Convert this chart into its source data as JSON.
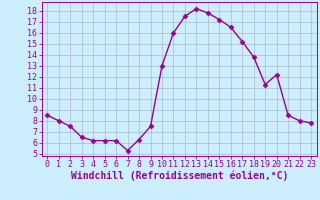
{
  "x": [
    0,
    1,
    2,
    3,
    4,
    5,
    6,
    7,
    8,
    9,
    10,
    11,
    12,
    13,
    14,
    15,
    16,
    17,
    18,
    19,
    20,
    21,
    22,
    23
  ],
  "y": [
    8.5,
    8.0,
    7.5,
    6.5,
    6.2,
    6.2,
    6.2,
    5.3,
    6.3,
    7.5,
    13.0,
    16.0,
    17.5,
    18.2,
    17.8,
    17.2,
    16.5,
    15.2,
    13.8,
    11.3,
    12.2,
    8.5,
    8.0,
    7.8
  ],
  "line_color": "#990099",
  "marker": "D",
  "marker_size": 2.5,
  "bg_color": "#cceeff",
  "grid_color": "#b0b8cc",
  "xlabel": "Windchill (Refroidissement éolien,°C)",
  "xlim": [
    -0.5,
    23.5
  ],
  "ylim": [
    4.8,
    18.8
  ],
  "yticks": [
    5,
    6,
    7,
    8,
    9,
    10,
    11,
    12,
    13,
    14,
    15,
    16,
    17,
    18
  ],
  "xticks": [
    0,
    1,
    2,
    3,
    4,
    5,
    6,
    7,
    8,
    9,
    10,
    11,
    12,
    13,
    14,
    15,
    16,
    17,
    18,
    19,
    20,
    21,
    22,
    23
  ],
  "tick_label_fontsize": 6.0,
  "xlabel_fontsize": 7.0,
  "line_width": 1.0
}
